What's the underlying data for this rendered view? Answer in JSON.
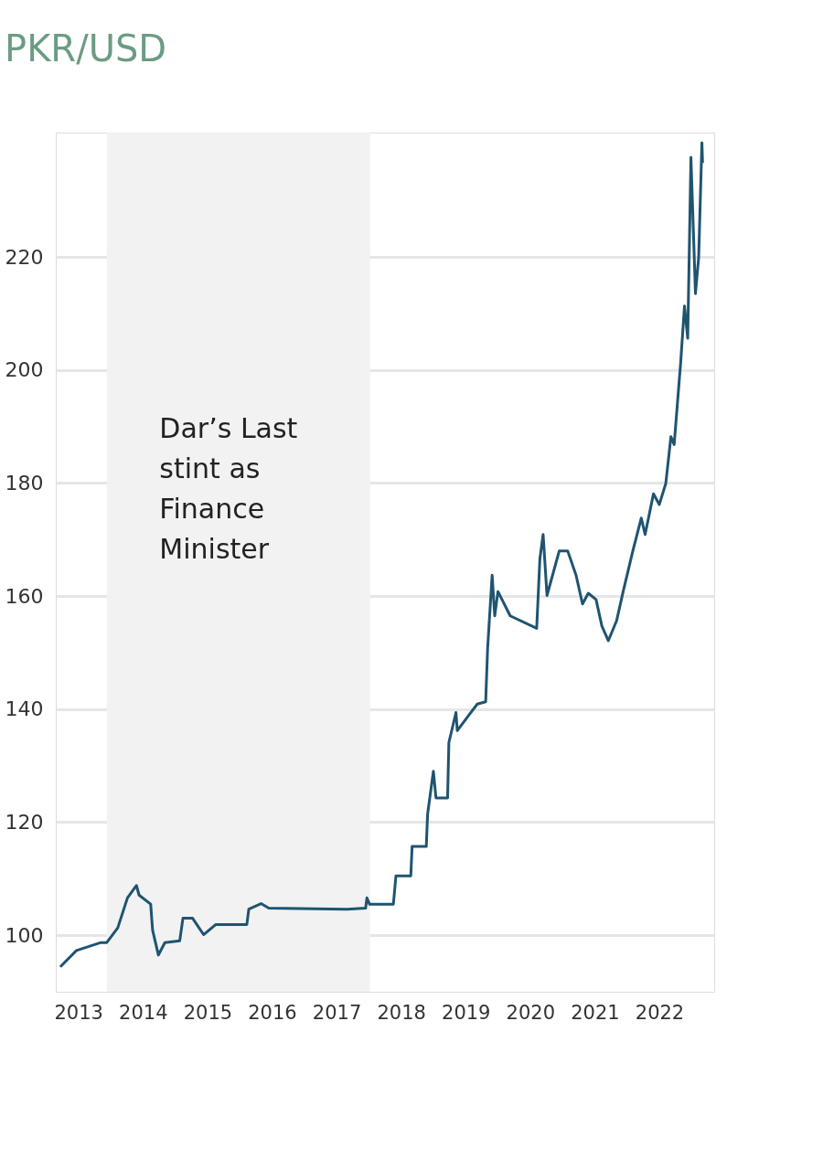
{
  "chart_data": {
    "type": "line",
    "title": "PKR/USD",
    "x": [
      2012.72,
      2012.97,
      2013.35,
      2013.44,
      2013.61,
      2013.76,
      2013.9,
      2013.94,
      2014.12,
      2014.15,
      2014.24,
      2014.34,
      2014.57,
      2014.62,
      2014.77,
      2014.94,
      2015.13,
      2015.61,
      2015.64,
      2015.83,
      2015.95,
      2017.16,
      2017.45,
      2017.47,
      2017.51,
      2017.88,
      2017.92,
      2018.15,
      2018.17,
      2018.39,
      2018.41,
      2018.5,
      2018.54,
      2018.72,
      2018.74,
      2018.85,
      2018.87,
      2019.06,
      2019.18,
      2019.31,
      2019.34,
      2019.41,
      2019.45,
      2019.5,
      2019.69,
      2020.1,
      2020.15,
      2020.2,
      2020.26,
      2020.45,
      2020.58,
      2020.71,
      2020.81,
      2020.9,
      2021.02,
      2021.11,
      2021.21,
      2021.34,
      2021.44,
      2021.59,
      2021.72,
      2021.78,
      2021.91,
      2022.0,
      2022.1,
      2022.18,
      2022.23,
      2022.33,
      2022.39,
      2022.44,
      2022.49,
      2022.56,
      2022.61,
      2022.66,
      2022.67
    ],
    "series": [
      {
        "color": "#1f5470",
        "values": [
          94.4,
          97.3,
          98.7,
          98.7,
          101.3,
          106.6,
          108.8,
          107.1,
          105.5,
          100.9,
          96.5,
          98.7,
          99.0,
          103.0,
          103.0,
          100.1,
          101.9,
          101.9,
          104.6,
          105.6,
          104.8,
          104.6,
          104.8,
          106.6,
          105.5,
          105.5,
          110.5,
          110.5,
          115.7,
          115.7,
          121.4,
          129.0,
          124.3,
          124.3,
          134.1,
          139.4,
          136.2,
          139.1,
          140.9,
          141.3,
          150.7,
          163.7,
          156.5,
          160.8,
          156.5,
          154.3,
          166.6,
          170.9,
          160.1,
          168.0,
          168.0,
          163.7,
          158.6,
          160.5,
          159.4,
          154.7,
          152.1,
          155.7,
          160.8,
          168.0,
          173.8,
          170.9,
          178.1,
          176.2,
          179.9,
          188.2,
          186.8,
          201.2,
          211.3,
          205.6,
          237.6,
          213.5,
          220.0,
          240.2,
          236.6
        ]
      }
    ],
    "xlim": [
      2012.65,
      2022.85
    ],
    "xticks": [
      2013,
      2014,
      2015,
      2016,
      2017,
      2018,
      2019,
      2020,
      2021,
      2022
    ],
    "ylim": [
      90,
      242
    ],
    "yticks": [
      100,
      120,
      140,
      160,
      180,
      200,
      220
    ],
    "bands": [
      {
        "axis": "x",
        "from": 2013.44,
        "to": 2017.52,
        "label": "Dar’s Last stint as Finance Minister",
        "color": "#f2f2f2"
      }
    ],
    "grid": "y",
    "marker": "none",
    "line_style": "solid"
  }
}
